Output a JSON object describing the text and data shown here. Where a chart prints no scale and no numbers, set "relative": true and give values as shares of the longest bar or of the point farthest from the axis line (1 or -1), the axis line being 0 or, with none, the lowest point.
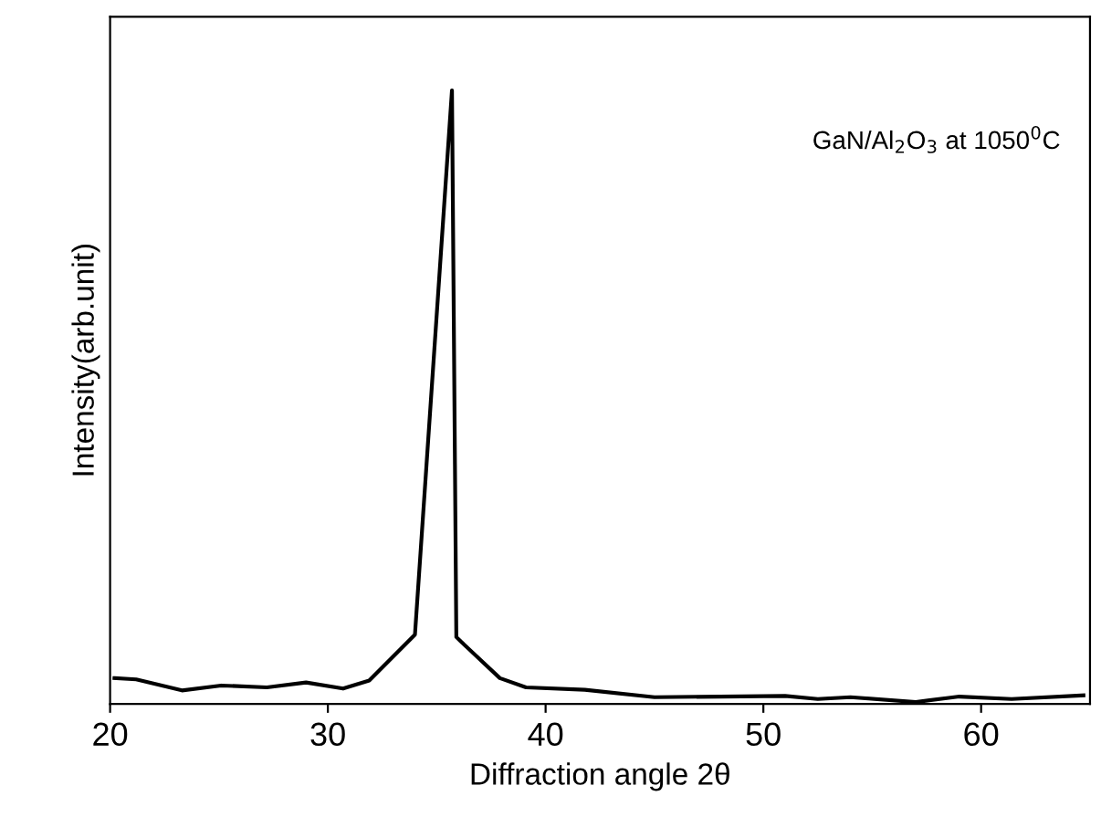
{
  "chart_data": {
    "type": "line",
    "relative": true,
    "xlabel": "Diffraction angle 2θ",
    "ylabel": "Intensity(arb.unit)",
    "annotations": [
      "GaN/Al$_{2}$O$_{3}$ at 1050$^{0}$C"
    ],
    "xlim": [
      20,
      65
    ],
    "xticks": [
      20,
      30,
      40,
      50,
      60
    ],
    "grid": false,
    "marker": "none",
    "line_style": "solid",
    "series": [
      {
        "color": "#000000",
        "x": [
          20.2,
          21.2,
          23.3,
          25.1,
          27.2,
          29.0,
          30.7,
          31.9,
          34.0,
          35.7,
          35.9,
          36.1,
          37.9,
          39.1,
          41.8,
          45.0,
          48.0,
          51.0,
          52.5,
          54.0,
          57.0,
          59.0,
          61.4,
          64.7
        ],
        "values": [
          0.042,
          0.04,
          0.022,
          0.03,
          0.027,
          0.035,
          0.025,
          0.038,
          0.113,
          1.0,
          0.109,
          0.102,
          0.042,
          0.027,
          0.023,
          0.011,
          0.012,
          0.013,
          0.008,
          0.011,
          0.003,
          0.012,
          0.008,
          0.014
        ]
      }
    ]
  }
}
